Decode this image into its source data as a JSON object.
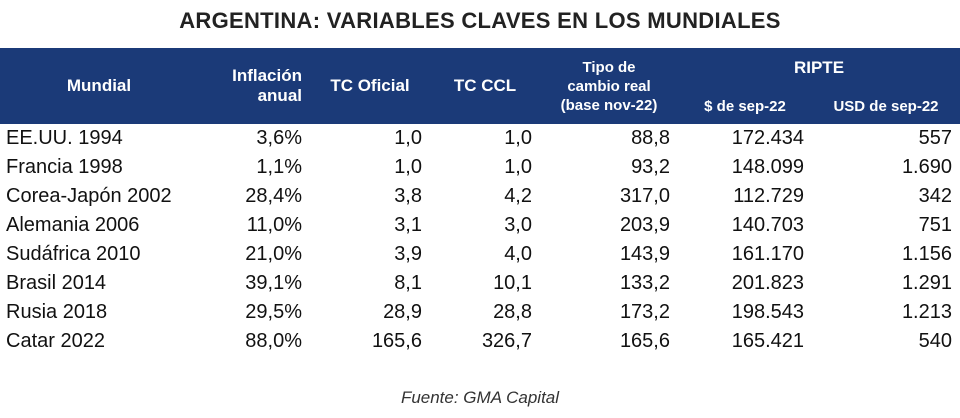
{
  "title": "ARGENTINA: VARIABLES CLAVES EN LOS MUNDIALES",
  "headers": {
    "mundial": "Mundial",
    "inflacion_line1": "Inflación",
    "inflacion_line2": "anual",
    "tc_oficial": "TC Oficial",
    "tc_ccl": "TC CCL",
    "tcr_line1": "Tipo de",
    "tcr_line2": "cambio real",
    "tcr_line3": "(base nov-22)",
    "ripte": "RIPTE",
    "ripte_pesos": "$ de sep-22",
    "ripte_usd": "USD de sep-22"
  },
  "rows": [
    {
      "mundial": "EE.UU. 1994",
      "inflacion": "3,6%",
      "tc_oficial": "1,0",
      "tc_ccl": "1,0",
      "tcr": "88,8",
      "ripte_pesos": "172.434",
      "ripte_usd": "557"
    },
    {
      "mundial": "Francia 1998",
      "inflacion": "1,1%",
      "tc_oficial": "1,0",
      "tc_ccl": "1,0",
      "tcr": "93,2",
      "ripte_pesos": "148.099",
      "ripte_usd": "1.690"
    },
    {
      "mundial": "Corea-Japón 2002",
      "inflacion": "28,4%",
      "tc_oficial": "3,8",
      "tc_ccl": "4,2",
      "tcr": "317,0",
      "ripte_pesos": "112.729",
      "ripte_usd": "342"
    },
    {
      "mundial": "Alemania 2006",
      "inflacion": "11,0%",
      "tc_oficial": "3,1",
      "tc_ccl": "3,0",
      "tcr": "203,9",
      "ripte_pesos": "140.703",
      "ripte_usd": "751"
    },
    {
      "mundial": "Sudáfrica 2010",
      "inflacion": "21,0%",
      "tc_oficial": "3,9",
      "tc_ccl": "4,0",
      "tcr": "143,9",
      "ripte_pesos": "161.170",
      "ripte_usd": "1.156"
    },
    {
      "mundial": "Brasil 2014",
      "inflacion": "39,1%",
      "tc_oficial": "8,1",
      "tc_ccl": "10,1",
      "tcr": "133,2",
      "ripte_pesos": "201.823",
      "ripte_usd": "1.291"
    },
    {
      "mundial": "Rusia 2018",
      "inflacion": "29,5%",
      "tc_oficial": "28,9",
      "tc_ccl": "28,8",
      "tcr": "173,2",
      "ripte_pesos": "198.543",
      "ripte_usd": "1.213"
    },
    {
      "mundial": "Catar 2022",
      "inflacion": "88,0%",
      "tc_oficial": "165,6",
      "tc_ccl": "326,7",
      "tcr": "165,6",
      "ripte_pesos": "165.421",
      "ripte_usd": "540"
    }
  ],
  "source": "Fuente: GMA Capital",
  "colors": {
    "header_bg": "#1b3a78",
    "header_text": "#ffffff"
  }
}
